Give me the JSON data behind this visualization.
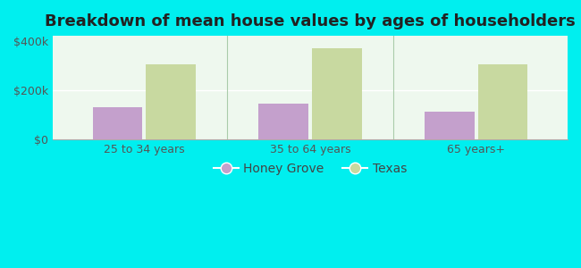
{
  "title": "Breakdown of mean house values by ages of householders",
  "categories": [
    "25 to 34 years",
    "35 to 64 years",
    "65 years+"
  ],
  "honey_grove_values": [
    130000,
    145000,
    110000
  ],
  "texas_values": [
    305000,
    370000,
    305000
  ],
  "honey_grove_color": "#c4a0cc",
  "texas_color": "#c8d9a0",
  "ylim": [
    0,
    420000
  ],
  "yticks": [
    0,
    200000,
    400000
  ],
  "ytick_labels": [
    "$0",
    "$200k",
    "$400k"
  ],
  "legend_labels": [
    "Honey Grove",
    "Texas"
  ],
  "bar_width": 0.3,
  "background_color": "#00efef",
  "plot_bg_top": "#e8f5e8",
  "plot_bg_bottom": "#f8fff8",
  "title_fontsize": 13,
  "tick_fontsize": 9,
  "legend_fontsize": 10,
  "tick_color": "#555555",
  "title_color": "#222222"
}
